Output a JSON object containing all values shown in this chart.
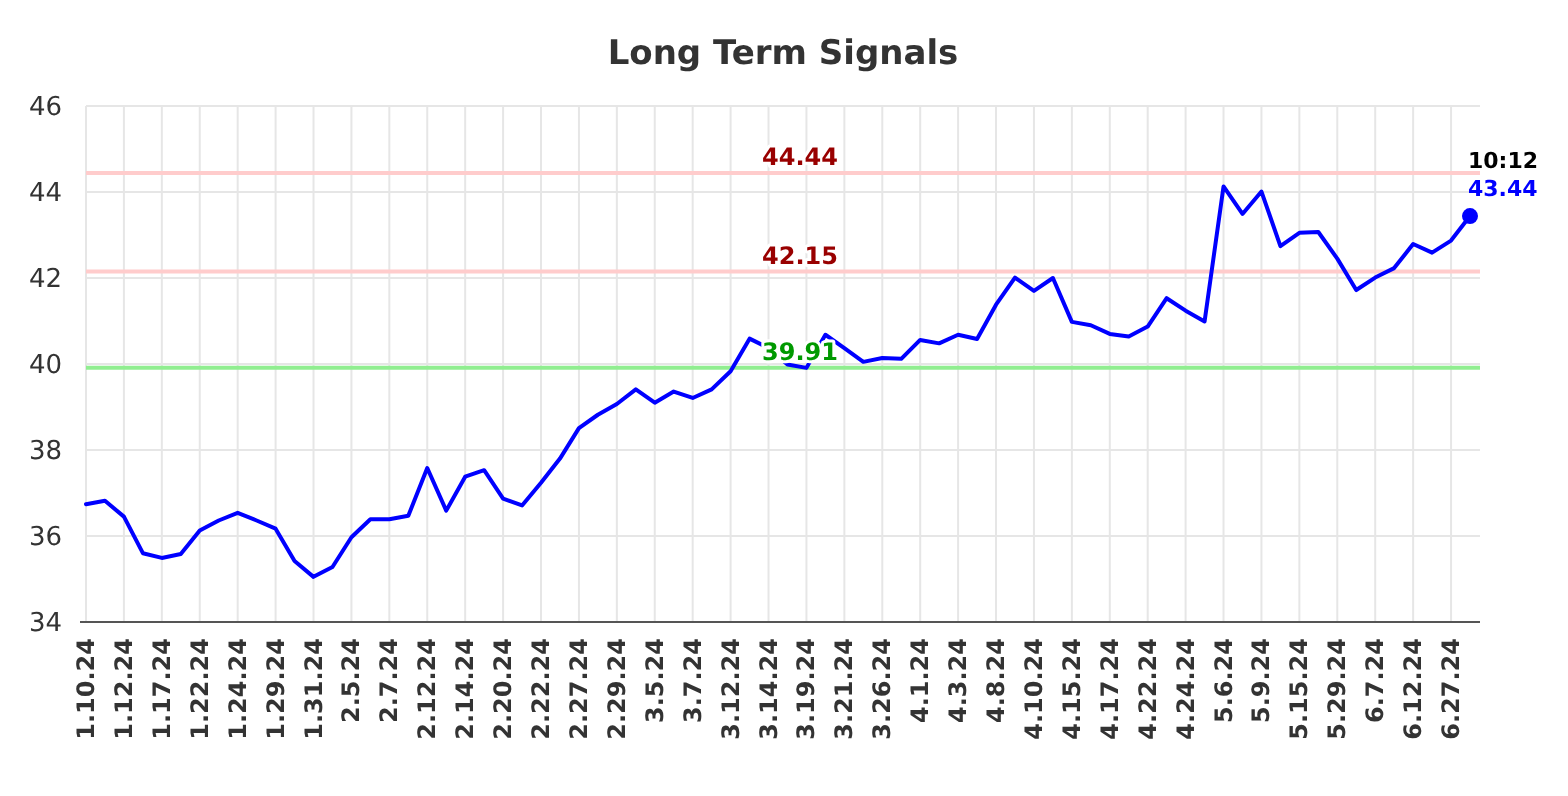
{
  "chart_data": {
    "type": "line",
    "title": "Long Term Signals",
    "categories": [
      "1.10.24",
      null,
      "1.12.24",
      null,
      "1.17.24",
      null,
      "1.22.24",
      null,
      "1.24.24",
      null,
      "1.29.24",
      null,
      "1.31.24",
      null,
      "2.5.24",
      null,
      "2.7.24",
      null,
      "2.12.24",
      null,
      "2.14.24",
      null,
      "2.20.24",
      null,
      "2.22.24",
      null,
      "2.27.24",
      null,
      "2.29.24",
      null,
      "3.5.24",
      null,
      "3.7.24",
      null,
      "3.12.24",
      null,
      "3.14.24",
      null,
      "3.19.24",
      null,
      "3.21.24",
      null,
      "3.26.24",
      null,
      "4.1.24",
      null,
      "4.3.24",
      null,
      "4.8.24",
      null,
      "4.10.24",
      null,
      "4.15.24",
      null,
      "4.17.24",
      null,
      "4.22.24",
      null,
      "4.24.24",
      null,
      "5.6.24",
      null,
      "5.9.24",
      null,
      "5.15.24",
      null,
      "5.29.24",
      null,
      "6.7.24",
      null,
      "6.12.24",
      null,
      "6.27.24",
      null
    ],
    "series": [
      {
        "color": "#0000ff",
        "values": [
          36.74,
          36.82,
          36.45,
          35.6,
          35.49,
          35.58,
          36.13,
          36.36,
          36.54,
          36.36,
          36.17,
          35.42,
          35.05,
          35.28,
          35.97,
          36.39,
          36.39,
          36.47,
          37.58,
          36.59,
          37.38,
          37.53,
          36.87,
          36.71,
          37.24,
          37.8,
          38.51,
          38.82,
          39.07,
          39.41,
          39.1,
          39.36,
          39.21,
          39.41,
          39.83,
          40.59,
          40.37,
          39.99,
          39.91,
          40.68,
          40.37,
          40.05,
          40.14,
          40.12,
          40.56,
          40.48,
          40.68,
          40.58,
          41.38,
          42.01,
          41.7,
          42.0,
          40.98,
          40.9,
          40.7,
          40.64,
          40.87,
          41.53,
          41.24,
          40.99,
          44.13,
          43.49,
          44.01,
          42.74,
          43.05,
          43.07,
          42.45,
          41.72,
          42.01,
          42.23,
          42.79,
          42.59,
          42.87,
          43.44
        ]
      },
      {
        "type": "scatter",
        "color": "#0000ff",
        "marker": "circle",
        "values": [
          null,
          null,
          null,
          null,
          null,
          null,
          null,
          null,
          null,
          null,
          null,
          null,
          null,
          null,
          null,
          null,
          null,
          null,
          null,
          null,
          null,
          null,
          null,
          null,
          null,
          null,
          null,
          null,
          null,
          null,
          null,
          null,
          null,
          null,
          null,
          null,
          null,
          null,
          null,
          null,
          null,
          null,
          null,
          null,
          null,
          null,
          null,
          null,
          null,
          null,
          null,
          null,
          null,
          null,
          null,
          null,
          null,
          null,
          null,
          null,
          null,
          null,
          null,
          null,
          null,
          null,
          null,
          null,
          null,
          null,
          null,
          null,
          null,
          43.44
        ],
        "value_labels": [
          null,
          null,
          null,
          null,
          null,
          null,
          null,
          null,
          null,
          null,
          null,
          null,
          null,
          null,
          null,
          null,
          null,
          null,
          null,
          null,
          null,
          null,
          null,
          null,
          null,
          null,
          null,
          null,
          null,
          null,
          null,
          null,
          null,
          null,
          null,
          null,
          null,
          null,
          null,
          null,
          null,
          null,
          null,
          null,
          null,
          null,
          null,
          null,
          null,
          null,
          null,
          null,
          null,
          null,
          null,
          null,
          null,
          null,
          null,
          null,
          null,
          null,
          null,
          null,
          null,
          null,
          null,
          null,
          null,
          null,
          null,
          null,
          null,
          "43.44"
        ]
      }
    ],
    "ylim": [
      34,
      46
    ],
    "yticks": [
      34,
      36,
      38,
      40,
      42,
      44,
      46
    ],
    "grid": true,
    "ref_lines": [
      {
        "axis": "y",
        "value": 44.44,
        "label": "44.44",
        "color": "#ffcccc"
      },
      {
        "axis": "y",
        "value": 42.15,
        "label": "42.15",
        "color": "#ffcccc"
      },
      {
        "axis": "y",
        "value": 39.91,
        "label": "39.91",
        "color": "#90ee90"
      }
    ],
    "annotations": [
      "10:12"
    ]
  }
}
